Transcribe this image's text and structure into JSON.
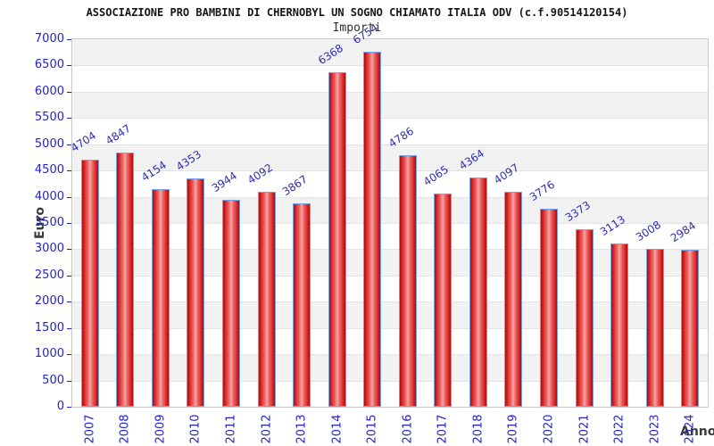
{
  "header": {
    "title": "ASSOCIAZIONE PRO BAMBINI DI CHERNOBYL UN SOGNO CHIAMATO ITALIA ODV (c.f.90514120154)",
    "subtitle": "Importi"
  },
  "chart_data": {
    "type": "bar",
    "title": "Importi",
    "xlabel": "Anno",
    "ylabel": "Euro",
    "categories": [
      "2007",
      "2008",
      "2009",
      "2010",
      "2011",
      "2012",
      "2013",
      "2014",
      "2015",
      "2016",
      "2017",
      "2018",
      "2019",
      "2020",
      "2021",
      "2022",
      "2023",
      "2024"
    ],
    "values": [
      4704,
      4847,
      4154,
      4353,
      3944,
      4092,
      3867,
      6368,
      6754,
      4786,
      4065,
      4364,
      4097,
      3776,
      3373,
      3113,
      3008,
      2984
    ],
    "ylim": [
      0,
      7000
    ],
    "ytick_step": 500,
    "grid": "horizontal-bands-alternating",
    "legend": "none",
    "bar_value_labels_rotated": true
  },
  "colors": {
    "title_text": "#161616",
    "subtitle_text": "#303030",
    "axis_text": "#2323cc",
    "value_label": "#2d2db0",
    "axis_title_text": "#3a3a3a",
    "bar_border": "#78a2e8",
    "bar_fill_edge": "#a50f0f",
    "bar_fill_mid": "#ef6b6b",
    "bar_fill_center": "#f7a8a8",
    "band_gray": "#f2f2f2",
    "band_white": "#ffffff",
    "grid_line": "#e3e3e3",
    "plot_border": "#c9c9c9"
  }
}
